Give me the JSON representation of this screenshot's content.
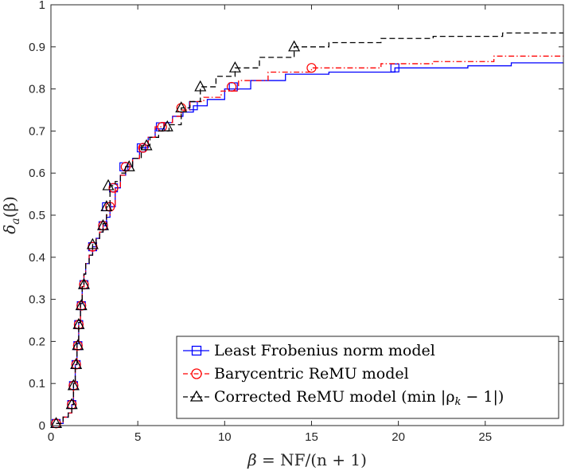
{
  "chart_data": {
    "type": "line",
    "title": "",
    "xlabel": "β = NF/(n + 1)",
    "ylabel": "δ_a(β)",
    "xlim": [
      0,
      29.5
    ],
    "ylim": [
      0,
      1
    ],
    "grid": false,
    "legend_position": "bottom-right",
    "x_ticks": [
      0,
      5,
      10,
      15,
      20,
      25
    ],
    "x_tick_labels": [
      "0",
      "5",
      "10",
      "15",
      "20",
      "25"
    ],
    "y_ticks": [
      0,
      0.1,
      0.2,
      0.3,
      0.4,
      0.5,
      0.6,
      0.7,
      0.8,
      0.9,
      1
    ],
    "y_tick_labels": [
      "0",
      "0.1",
      "0.2",
      "0.3",
      "0.4",
      "0.5",
      "0.6",
      "0.7",
      "0.8",
      "0.9",
      "1"
    ],
    "series": [
      {
        "name": "Least Frobenius norm model",
        "color": "#0000ff",
        "dash": "solid",
        "marker": "square",
        "x": [
          0.3,
          0.7,
          1.0,
          1.2,
          1.3,
          1.4,
          1.5,
          1.6,
          1.7,
          1.8,
          1.9,
          2.0,
          2.2,
          2.4,
          2.6,
          2.8,
          3.0,
          3.2,
          3.4,
          3.7,
          4.0,
          4.3,
          4.7,
          5.1,
          5.6,
          6.0,
          6.5,
          7.0,
          7.6,
          8.2,
          9.0,
          10.0,
          11.5,
          13.5,
          16.0,
          19.8,
          24.0,
          26.5,
          29.5
        ],
        "y": [
          0.005,
          0.02,
          0.03,
          0.05,
          0.1,
          0.145,
          0.195,
          0.245,
          0.29,
          0.33,
          0.36,
          0.385,
          0.405,
          0.425,
          0.445,
          0.46,
          0.475,
          0.495,
          0.52,
          0.565,
          0.595,
          0.615,
          0.635,
          0.66,
          0.685,
          0.705,
          0.72,
          0.735,
          0.745,
          0.76,
          0.775,
          0.8,
          0.82,
          0.835,
          0.84,
          0.85,
          0.855,
          0.862,
          0.862
        ],
        "marker_x": [
          0.3,
          1.2,
          1.3,
          1.45,
          1.55,
          1.6,
          1.75,
          1.9,
          2.4,
          3.0,
          3.2,
          3.6,
          4.2,
          5.2,
          6.3,
          8.2,
          10.5,
          19.8
        ],
        "marker_y": [
          0.005,
          0.05,
          0.095,
          0.145,
          0.19,
          0.24,
          0.285,
          0.335,
          0.425,
          0.475,
          0.52,
          0.565,
          0.615,
          0.66,
          0.71,
          0.76,
          0.805,
          0.85
        ]
      },
      {
        "name": "Barycentric ReMU model",
        "color": "#ff0000",
        "dash": "dashdot",
        "marker": "circle",
        "x": [
          0.3,
          0.7,
          1.0,
          1.2,
          1.3,
          1.4,
          1.5,
          1.6,
          1.7,
          1.8,
          1.9,
          2.0,
          2.2,
          2.4,
          2.6,
          2.8,
          3.0,
          3.2,
          3.4,
          3.7,
          4.0,
          4.3,
          4.7,
          5.1,
          5.6,
          6.0,
          6.5,
          7.0,
          7.5,
          8.0,
          8.8,
          9.8,
          10.8,
          12.5,
          15.0,
          19.0,
          22.0,
          25.5,
          29.5
        ],
        "y": [
          0.005,
          0.02,
          0.03,
          0.05,
          0.1,
          0.145,
          0.195,
          0.245,
          0.29,
          0.33,
          0.36,
          0.385,
          0.405,
          0.425,
          0.445,
          0.46,
          0.48,
          0.5,
          0.52,
          0.565,
          0.595,
          0.615,
          0.635,
          0.665,
          0.685,
          0.71,
          0.72,
          0.735,
          0.75,
          0.77,
          0.78,
          0.795,
          0.82,
          0.84,
          0.85,
          0.86,
          0.865,
          0.878,
          0.878
        ],
        "marker_x": [
          0.3,
          1.2,
          1.3,
          1.45,
          1.55,
          1.6,
          1.75,
          1.9,
          2.4,
          3.0,
          3.4,
          3.6,
          4.3,
          5.3,
          6.4,
          7.5,
          10.4,
          15.0
        ],
        "marker_y": [
          0.005,
          0.05,
          0.095,
          0.145,
          0.19,
          0.24,
          0.285,
          0.335,
          0.425,
          0.475,
          0.52,
          0.565,
          0.615,
          0.66,
          0.71,
          0.755,
          0.805,
          0.85
        ]
      },
      {
        "name": "Corrected ReMU model (min|ρ_k − 1|)",
        "color": "#000000",
        "dash": "dashed",
        "marker": "triangle",
        "x": [
          0.3,
          0.7,
          1.0,
          1.2,
          1.3,
          1.4,
          1.5,
          1.6,
          1.7,
          1.8,
          1.9,
          2.0,
          2.2,
          2.4,
          2.6,
          2.8,
          3.0,
          3.2,
          3.4,
          3.7,
          4.0,
          4.3,
          4.7,
          5.2,
          5.7,
          6.2,
          6.8,
          7.5,
          8.0,
          8.6,
          9.5,
          10.6,
          12.0,
          14.0,
          16.0,
          19.0,
          22.0,
          26.0,
          29.5
        ],
        "y": [
          0.005,
          0.02,
          0.03,
          0.05,
          0.1,
          0.145,
          0.195,
          0.245,
          0.29,
          0.33,
          0.36,
          0.385,
          0.405,
          0.43,
          0.445,
          0.46,
          0.48,
          0.52,
          0.57,
          0.58,
          0.6,
          0.615,
          0.635,
          0.665,
          0.685,
          0.7,
          0.715,
          0.755,
          0.77,
          0.805,
          0.83,
          0.85,
          0.875,
          0.9,
          0.91,
          0.92,
          0.925,
          0.933,
          0.933
        ],
        "marker_x": [
          0.3,
          1.2,
          1.3,
          1.45,
          1.55,
          1.6,
          1.75,
          1.9,
          2.4,
          3.0,
          3.2,
          3.3,
          4.5,
          5.5,
          6.7,
          7.5,
          8.6,
          10.6,
          14.0
        ],
        "marker_y": [
          0.005,
          0.05,
          0.095,
          0.145,
          0.19,
          0.24,
          0.285,
          0.335,
          0.43,
          0.475,
          0.52,
          0.57,
          0.615,
          0.665,
          0.71,
          0.755,
          0.805,
          0.85,
          0.9
        ]
      }
    ]
  },
  "legend": {
    "items": [
      {
        "label": "Least Frobenius norm model"
      },
      {
        "label": "Barycentric ReMU model"
      },
      {
        "label_main": "Corrected ReMU model (min |ρ",
        "label_sub": "k",
        "label_tail": " − 1|)"
      }
    ]
  },
  "axes": {
    "xlabel_beta": "β",
    "xlabel_rest": " = NF/(n + 1)",
    "ylabel_delta": "δ",
    "ylabel_sub": "a",
    "ylabel_rest": "(β)"
  }
}
